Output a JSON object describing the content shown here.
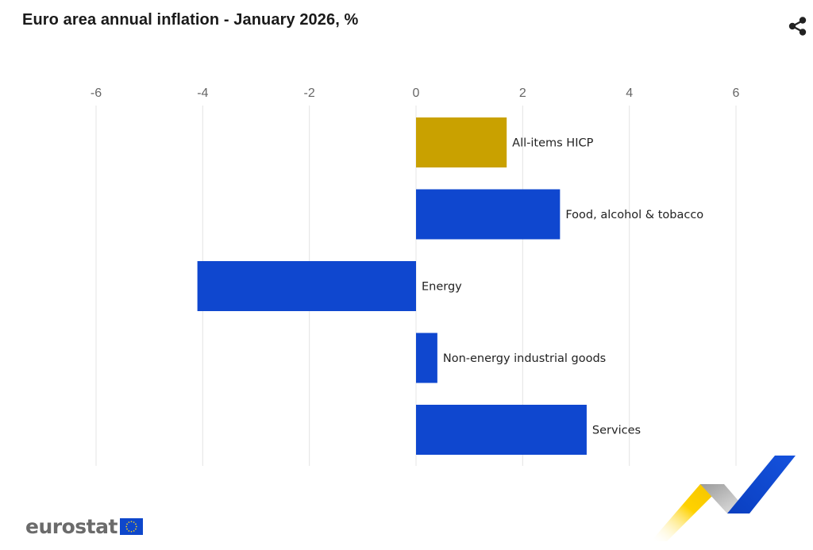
{
  "header": {
    "title": "Euro area annual inflation - January 2026, %"
  },
  "icons": {
    "share": "share-icon"
  },
  "branding": {
    "logo_text": "eurostat",
    "flag": "eu-flag-icon"
  },
  "colors": {
    "highlight_bar": "#c9a100",
    "component_bar": "#0f47cf",
    "gridline": "#e4e4e4",
    "tick_text": "#666666",
    "logo_text": "#6b6b6b",
    "flag_blue": "#0e47cb",
    "flag_star": "#ffd617"
  },
  "chart_data": {
    "type": "bar",
    "orientation": "horizontal",
    "title": "Euro area annual inflation - January 2026, %",
    "categories": [
      "All-items HICP",
      "Food, alcohol & tobacco",
      "Energy",
      "Non-energy industrial goods",
      "Services"
    ],
    "values": [
      1.7,
      2.7,
      -4.1,
      0.4,
      3.2
    ],
    "xlim": [
      -6,
      6
    ],
    "xticks": [
      -6,
      -4,
      -2,
      0,
      2,
      4,
      6
    ],
    "xtick_labels": [
      "-6",
      "-4",
      "-2",
      "0",
      "2",
      "4",
      "6"
    ],
    "axis_position": "top",
    "grid": true,
    "legend": "none",
    "highlight_category": "All-items HICP"
  }
}
